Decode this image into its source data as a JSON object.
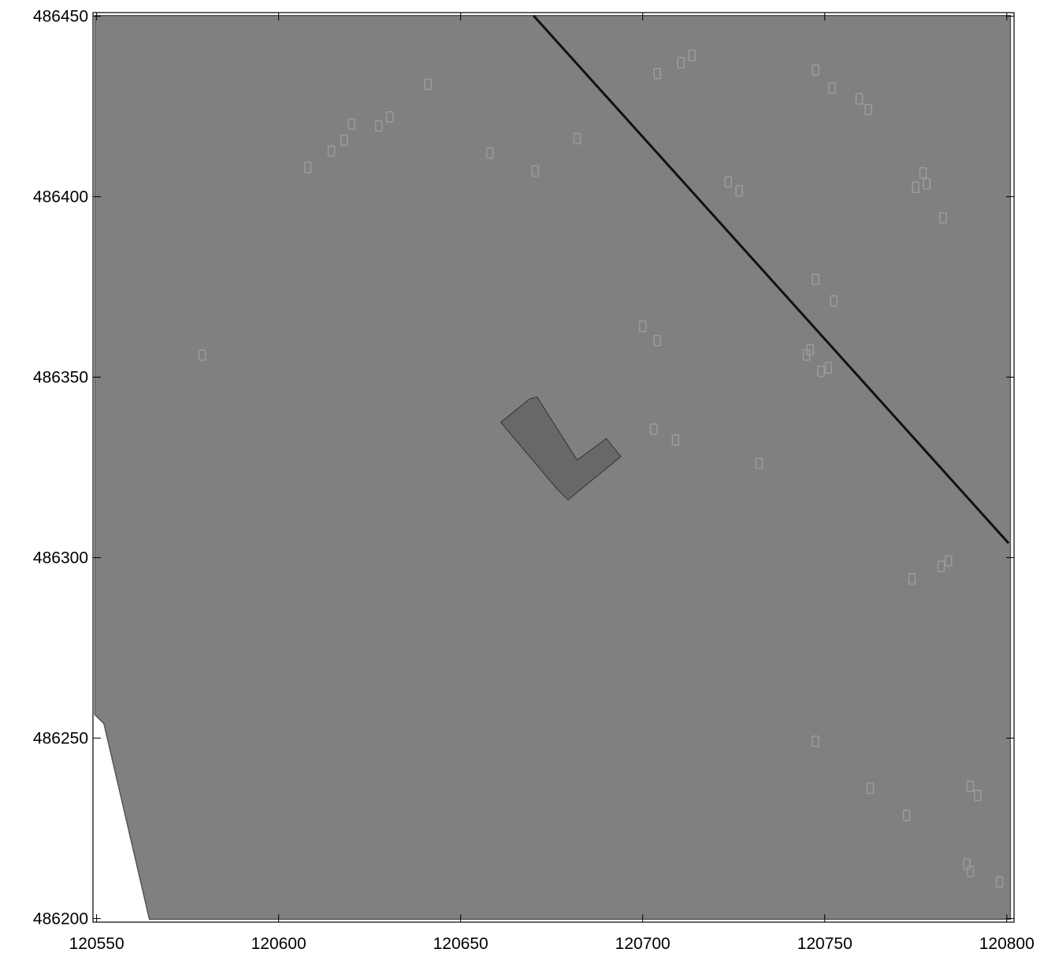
{
  "map": {
    "x_range": [
      120549,
      120802
    ],
    "y_range": [
      486199,
      486451
    ],
    "x_ticks": [
      {
        "value": 120550,
        "label": "120550"
      },
      {
        "value": 120600,
        "label": "120600"
      },
      {
        "value": 120650,
        "label": "120650"
      },
      {
        "value": 120700,
        "label": "120700"
      },
      {
        "value": 120750,
        "label": "120750"
      },
      {
        "value": 120800,
        "label": "120800"
      }
    ],
    "y_ticks": [
      {
        "value": 486450,
        "label": "486450"
      },
      {
        "value": 486400,
        "label": "486400"
      },
      {
        "value": 486350,
        "label": "486350"
      },
      {
        "value": 486300,
        "label": "486300"
      },
      {
        "value": 486250,
        "label": "486250"
      },
      {
        "value": 486200,
        "label": "486200"
      }
    ],
    "colors": {
      "area_fill": "#808080",
      "building_fill": "#686868",
      "line": "#111111",
      "marker": "#9a9a9a",
      "background": "#ffffff"
    },
    "area_polygon": [
      [
        120549.5,
        486450.2
      ],
      [
        120801,
        486450.2
      ],
      [
        120801,
        486199.8
      ],
      [
        120564.5,
        486199.8
      ],
      [
        120552,
        486254
      ],
      [
        120549.5,
        486256.5
      ]
    ],
    "road_line": [
      [
        120670,
        486450.2
      ],
      [
        120800.5,
        486304
      ]
    ],
    "building_polygon": [
      [
        120661,
        486337.5
      ],
      [
        120669,
        486344
      ],
      [
        120671,
        486344.5
      ],
      [
        120682,
        486327
      ],
      [
        120690,
        486333
      ],
      [
        120694,
        486328
      ],
      [
        120679.5,
        486316
      ],
      [
        120676.5,
        486319
      ]
    ],
    "markers": [
      [
        120579,
        486356
      ],
      [
        120608,
        486408
      ],
      [
        120614.5,
        486412.5
      ],
      [
        120618,
        486415.5
      ],
      [
        120620,
        486420
      ],
      [
        120627.5,
        486419.5
      ],
      [
        120630.5,
        486422
      ],
      [
        120641,
        486431
      ],
      [
        120658,
        486412
      ],
      [
        120670.5,
        486407
      ],
      [
        120682,
        486416
      ],
      [
        120704,
        486434
      ],
      [
        120710.5,
        486437
      ],
      [
        120713.5,
        486439
      ],
      [
        120723.5,
        486404
      ],
      [
        120726.5,
        486401.5
      ],
      [
        120700,
        486364
      ],
      [
        120704,
        486360
      ],
      [
        120703,
        486335.5
      ],
      [
        120709,
        486332.5
      ],
      [
        120732,
        486326
      ],
      [
        120745,
        486356
      ],
      [
        120746,
        486357.5
      ],
      [
        120747.5,
        486377
      ],
      [
        120749,
        486351.5
      ],
      [
        120751,
        486352.5
      ],
      [
        120752.5,
        486371
      ],
      [
        120747.5,
        486435
      ],
      [
        120752,
        486430
      ],
      [
        120759.5,
        486427
      ],
      [
        120762,
        486424
      ],
      [
        120775,
        486402.5
      ],
      [
        120777,
        486406.5
      ],
      [
        120778,
        486403.5
      ],
      [
        120782.5,
        486394
      ],
      [
        120774,
        486294
      ],
      [
        120782,
        486297.5
      ],
      [
        120784,
        486299
      ],
      [
        120747.5,
        486249
      ],
      [
        120762.5,
        486236
      ],
      [
        120772.5,
        486228.5
      ],
      [
        120789,
        486215
      ],
      [
        120790,
        486213
      ],
      [
        120790,
        486236.5
      ],
      [
        120792,
        486234
      ],
      [
        120798,
        486210
      ]
    ]
  }
}
